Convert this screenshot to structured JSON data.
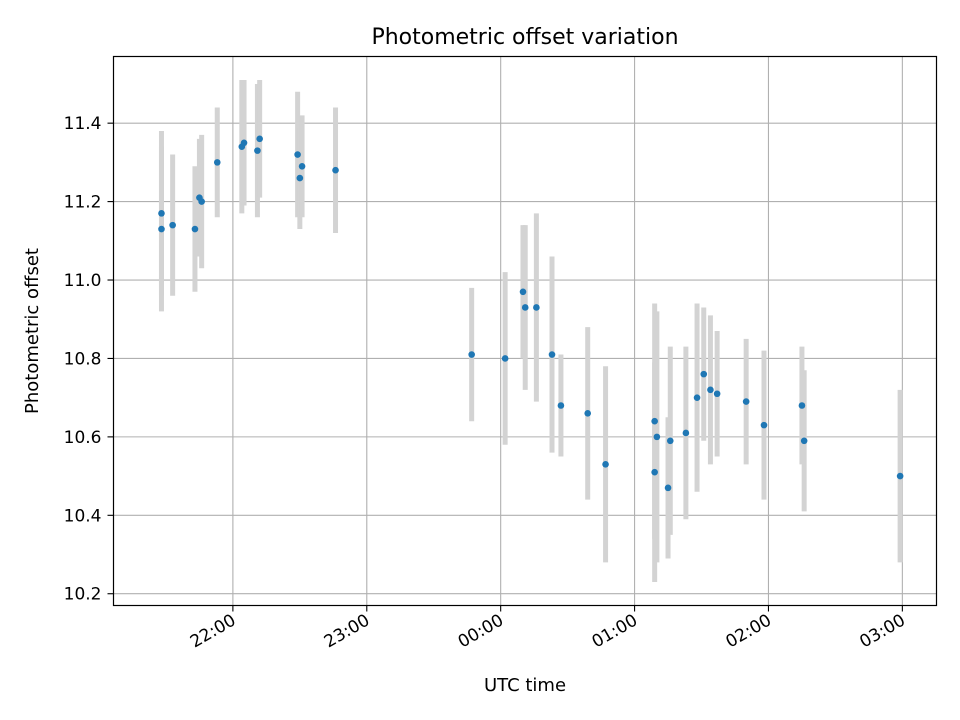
{
  "chart_data": {
    "type": "scatter",
    "title": "Photometric offset variation",
    "xlabel": "UTC time",
    "ylabel": "Photometric offset",
    "x_ticks": [
      "22:00",
      "23:00",
      "00:00",
      "01:00",
      "02:00",
      "03:00"
    ],
    "x_tick_values": [
      -120,
      -60,
      0,
      60,
      120,
      180
    ],
    "y_ticks": [
      10.2,
      10.4,
      10.6,
      10.8,
      11.0,
      11.2,
      11.4
    ],
    "xlim_minutes_from_midnight": [
      -173.5,
      195.3
    ],
    "ylim": [
      10.17,
      11.57
    ],
    "grid": true,
    "point_color": "#1f77b4",
    "errorbar_color": "#d3d3d3",
    "series": [
      {
        "x": [
          "21:28",
          "21:28",
          "21:33",
          "21:43",
          "21:45",
          "21:46",
          "21:53",
          "22:04",
          "22:05",
          "22:11",
          "22:12",
          "22:29",
          "22:30",
          "22:31",
          "22:46",
          "23:47",
          "00:02",
          "00:10",
          "00:11",
          "00:16",
          "00:23",
          "00:27",
          "00:39",
          "00:47",
          "01:09",
          "01:09",
          "01:10",
          "01:15",
          "01:16",
          "01:23",
          "01:28",
          "01:31",
          "01:34",
          "01:37",
          "01:50",
          "01:58",
          "02:15",
          "02:16",
          "02:59"
        ],
        "y": [
          11.13,
          11.17,
          11.14,
          11.13,
          11.21,
          11.2,
          11.3,
          11.34,
          11.35,
          11.33,
          11.36,
          11.32,
          11.26,
          11.29,
          11.28,
          10.81,
          10.8,
          10.97,
          10.93,
          10.93,
          10.81,
          10.68,
          10.66,
          10.53,
          10.51,
          10.64,
          10.6,
          10.47,
          10.59,
          10.61,
          10.7,
          10.76,
          10.72,
          10.71,
          10.69,
          10.63,
          10.68,
          10.59,
          10.5
        ],
        "yerr": [
          0.21,
          0.21,
          0.18,
          0.16,
          0.15,
          0.17,
          0.14,
          0.17,
          0.16,
          0.17,
          0.15,
          0.16,
          0.13,
          0.13,
          0.16,
          0.17,
          0.22,
          0.17,
          0.21,
          0.24,
          0.25,
          0.13,
          0.22,
          0.25,
          0.28,
          0.3,
          0.32,
          0.18,
          0.24,
          0.22,
          0.24,
          0.17,
          0.19,
          0.16,
          0.16,
          0.19,
          0.15,
          0.18,
          0.22
        ]
      }
    ]
  }
}
